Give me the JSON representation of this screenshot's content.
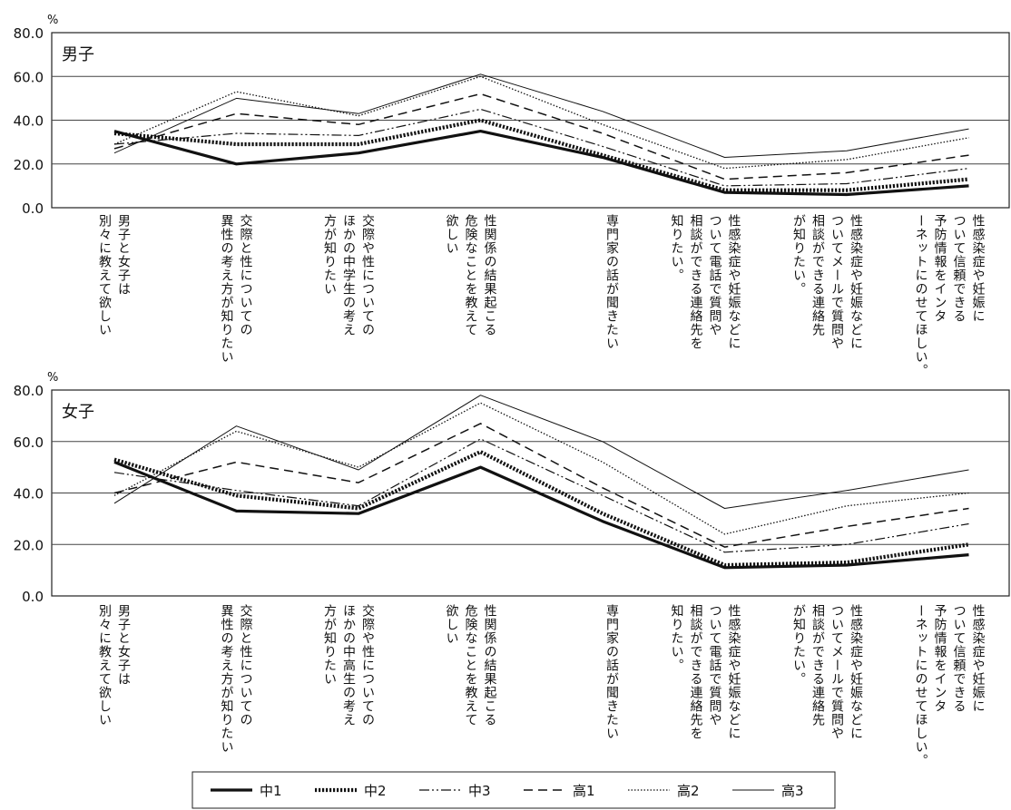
{
  "chart_data": [
    {
      "type": "line",
      "title": "男子",
      "unit": "%",
      "ylim": [
        0,
        80
      ],
      "yticks": [
        "0.0",
        "20.0",
        "40.0",
        "60.0",
        "80.0"
      ],
      "categories": [
        "男子と女子は別々に教えて欲しい",
        "交際と性についての異性の考え方が知りたい",
        "交際や性についてのほかの中学生の考え方が知りたい",
        "性関係の結果起こる危険なことを教えて欲しい",
        "専門家の話が聞きたい",
        "性感染症や妊娠などについて電話で質問や相談ができる連絡先を知りたい。",
        "性感染症や妊娠などについてメールで質問や相談ができる連絡先が知りたい。",
        "性感染症や妊娠について信頼できる予防情報をインターネットにのせてほしい。"
      ],
      "label_columns": [
        [
          "男子と女子は",
          "別々に教えて欲しい"
        ],
        [
          "交際と性についての",
          "異性の考え方が知りたい"
        ],
        [
          "交際や性についての",
          "ほかの中学生の考え",
          "方が知りたい"
        ],
        [
          "性関係の結果起こる",
          "危険なことを教えて",
          "欲しい"
        ],
        [
          "専門家の話が聞きたい"
        ],
        [
          "性感染症や妊娠などに",
          "ついて電話で質問や",
          "相談ができる連絡先を",
          "知りたい。"
        ],
        [
          "性感染症や妊娠などに",
          "ついてメールで質問や",
          "相談ができる連絡先",
          "が知りたい。"
        ],
        [
          "性感染症や妊娠に",
          "ついて信頼できる",
          "予防情報をインタ",
          "ーネットにのせてほしい。"
        ]
      ],
      "series": [
        {
          "name": "中1",
          "values": [
            35,
            20,
            25,
            35,
            23,
            7,
            6,
            10
          ]
        },
        {
          "name": "中2",
          "values": [
            34,
            29,
            29,
            40,
            24,
            8,
            8,
            13
          ]
        },
        {
          "name": "中3",
          "values": [
            29,
            34,
            33,
            45,
            28,
            10,
            11,
            18
          ]
        },
        {
          "name": "高1",
          "values": [
            27,
            43,
            38,
            52,
            34,
            13,
            16,
            24
          ]
        },
        {
          "name": "高2",
          "values": [
            29,
            53,
            42,
            60,
            38,
            18,
            22,
            32
          ]
        },
        {
          "name": "高3",
          "values": [
            25,
            50,
            43,
            61,
            44,
            23,
            26,
            36
          ]
        }
      ],
      "grid": true
    },
    {
      "type": "line",
      "title": "女子",
      "unit": "%",
      "ylim": [
        0,
        80
      ],
      "yticks": [
        "0.0",
        "20.0",
        "40.0",
        "60.0",
        "80.0"
      ],
      "categories": [
        "男子と女子は別々に教えて欲しい",
        "交際と性についての異性の考え方が知りたい",
        "交際や性についてのほかの中高生の考え方が知りたい",
        "性関係の結果起こる危険なことを教えて欲しい",
        "専門家の話が聞きたい",
        "性感染症や妊娠などについて電話で質問や相談ができる連絡先を知りたい。",
        "性感染症や妊娠などについてメールで質問や相談ができる連絡先が知りたい。",
        "性感染症や妊娠について信頼できる予防情報をインターネットにのせてほしい。"
      ],
      "label_columns": [
        [
          "男子と女子は",
          "別々に教えて欲しい"
        ],
        [
          "交際と性についての",
          "異性の考え方が知りたい"
        ],
        [
          "交際や性についての",
          "ほかの中高生の考え",
          "方が知りたい"
        ],
        [
          "性関係の結果起こる",
          "危険なことを教えて",
          "欲しい"
        ],
        [
          "専門家の話が聞きたい"
        ],
        [
          "性感染症や妊娠などに",
          "ついて電話で質問や",
          "相談ができる連絡先を",
          "知りたい。"
        ],
        [
          "性感染症や妊娠などに",
          "ついてメールで質問や",
          "相談ができる連絡先",
          "が知りたい。"
        ],
        [
          "性感染症や妊娠に",
          "ついて信頼できる",
          "予防情報をインタ",
          "ーネットにのせてほしい。"
        ]
      ],
      "series": [
        {
          "name": "中1",
          "values": [
            52,
            33,
            32,
            50,
            29,
            11,
            12,
            16
          ]
        },
        {
          "name": "中2",
          "values": [
            53,
            39,
            34,
            56,
            32,
            12,
            13,
            20
          ]
        },
        {
          "name": "中3",
          "values": [
            48,
            41,
            35,
            61,
            39,
            17,
            20,
            28
          ]
        },
        {
          "name": "高1",
          "values": [
            40,
            52,
            44,
            67,
            42,
            19,
            27,
            34
          ]
        },
        {
          "name": "高2",
          "values": [
            39,
            64,
            50,
            75,
            52,
            24,
            35,
            40
          ]
        },
        {
          "name": "高3",
          "values": [
            36,
            66,
            49,
            78,
            60,
            34,
            41,
            49
          ]
        }
      ],
      "grid": true
    }
  ],
  "legend": [
    {
      "name": "中1",
      "style": "thick-solid"
    },
    {
      "name": "中2",
      "style": "thick-dotted"
    },
    {
      "name": "中3",
      "style": "dash-dot-dot"
    },
    {
      "name": "高1",
      "style": "dashed"
    },
    {
      "name": "高2",
      "style": "fine-dotted"
    },
    {
      "name": "高3",
      "style": "thin-solid"
    }
  ]
}
